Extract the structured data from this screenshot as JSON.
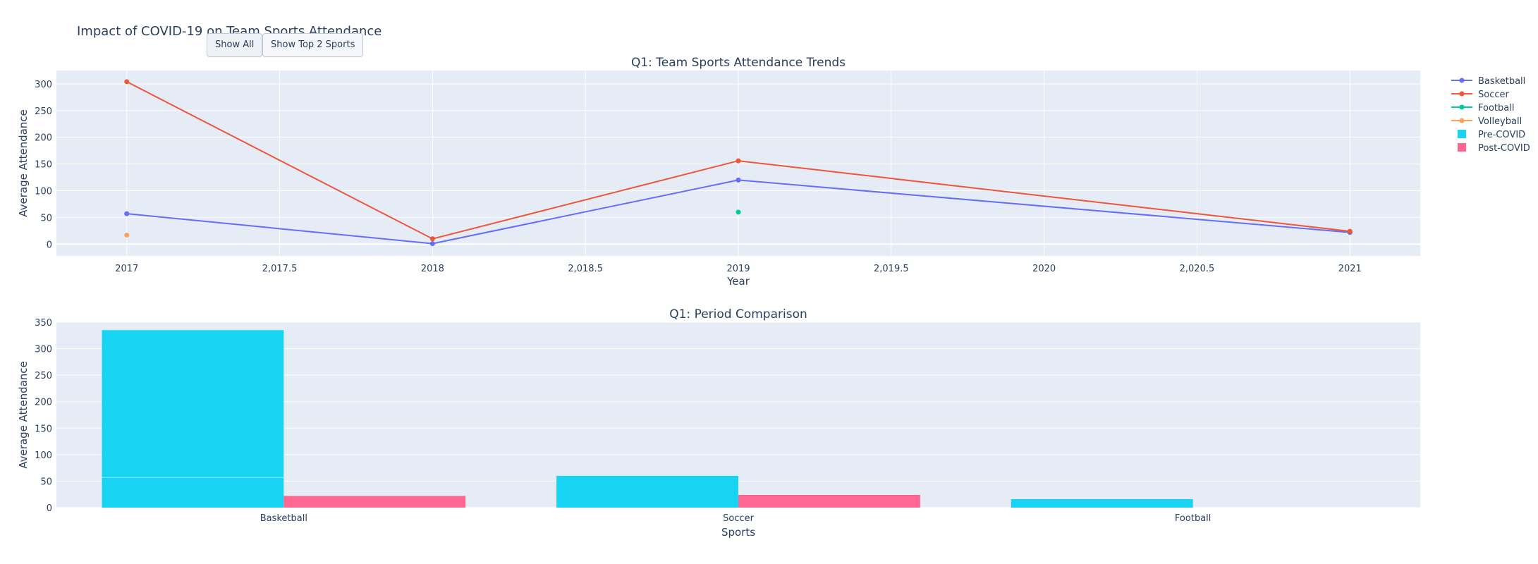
{
  "figure_title": "Impact of COVID-19 on Team Sports Attendance",
  "buttons": [
    {
      "label": "Show All"
    },
    {
      "label": "Show Top 2 Sports"
    }
  ],
  "colors": {
    "plot_bg": "#e5ecf6",
    "grid": "#ffffff",
    "text": "#2a3f5f",
    "basketball": "#636efa",
    "soccer": "#ef553b",
    "football": "#00cc96",
    "volleyball": "#ffa15a",
    "pre_covid": "#19d3f3",
    "post_covid": "#ff6692"
  },
  "legend": [
    {
      "name": "Basketball",
      "kind": "line",
      "color": "#636efa"
    },
    {
      "name": "Soccer",
      "kind": "line",
      "color": "#ef553b"
    },
    {
      "name": "Football",
      "kind": "line",
      "color": "#00cc96"
    },
    {
      "name": "Volleyball",
      "kind": "line",
      "color": "#ffa15a"
    },
    {
      "name": "Pre-COVID",
      "kind": "square",
      "color": "#19d3f3"
    },
    {
      "name": "Post-COVID",
      "kind": "square",
      "color": "#ff6692"
    }
  ],
  "chart_data": [
    {
      "type": "line",
      "title": "Q1: Team Sports Attendance Trends",
      "xlabel": "Year",
      "ylabel": "Average Attendance",
      "xlim": [
        2016.77,
        2021.23
      ],
      "ylim": [
        -22,
        325
      ],
      "xticks": [
        2017,
        2017.5,
        2018,
        2018.5,
        2019,
        2019.5,
        2020,
        2020.5,
        2021
      ],
      "xtick_labels": [
        "2017",
        "2,017.5",
        "2018",
        "2,018.5",
        "2019",
        "2,019.5",
        "2020",
        "2,020.5",
        "2021"
      ],
      "yticks": [
        0,
        50,
        100,
        150,
        200,
        250,
        300
      ],
      "ytick_labels": [
        "0",
        "50",
        "100",
        "150",
        "200",
        "250",
        "300"
      ],
      "grid": true,
      "series": [
        {
          "name": "Basketball",
          "color": "#636efa",
          "x": [
            2017,
            2018,
            2019,
            2021
          ],
          "y": [
            57,
            1,
            120,
            22
          ]
        },
        {
          "name": "Soccer",
          "color": "#ef553b",
          "x": [
            2017,
            2018,
            2019,
            2021
          ],
          "y": [
            304,
            10,
            156,
            24
          ]
        },
        {
          "name": "Football",
          "color": "#00cc96",
          "x": [
            2019
          ],
          "y": [
            60
          ]
        },
        {
          "name": "Volleyball",
          "color": "#ffa15a",
          "x": [
            2017
          ],
          "y": [
            17
          ]
        }
      ]
    },
    {
      "type": "bar",
      "title": "Q1: Period Comparison",
      "xlabel": "Sports",
      "ylabel": "Average Attendance",
      "categories": [
        "Basketball",
        "Soccer",
        "Football"
      ],
      "ylim": [
        0,
        350
      ],
      "yticks": [
        0,
        50,
        100,
        150,
        200,
        250,
        300,
        350
      ],
      "ytick_labels": [
        "0",
        "50",
        "100",
        "150",
        "200",
        "250",
        "300",
        "350"
      ],
      "grid": true,
      "series": [
        {
          "name": "Pre-COVID",
          "color": "#19d3f3",
          "values": [
            335,
            60,
            16
          ],
          "segment_line": [
            57,
            null,
            null
          ]
        },
        {
          "name": "Post-COVID",
          "color": "#ff6692",
          "values": [
            22,
            24,
            0
          ]
        }
      ]
    }
  ]
}
